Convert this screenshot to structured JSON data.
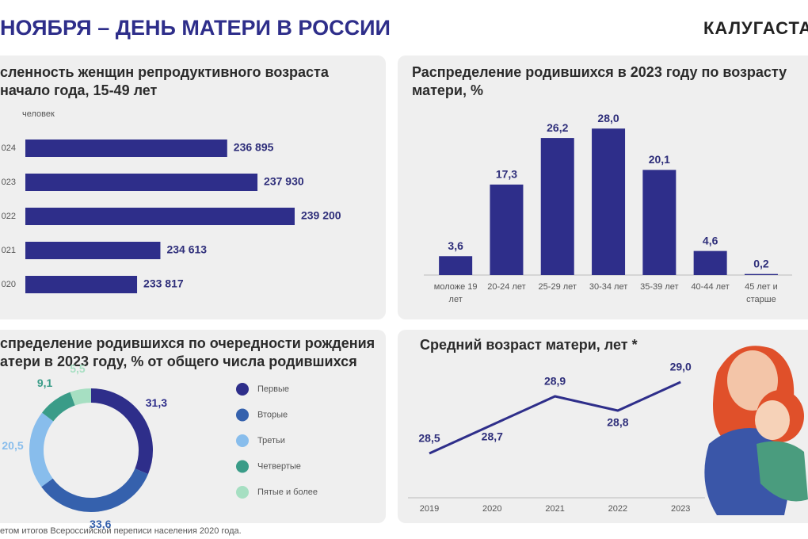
{
  "header": {
    "title": "НОЯБРЯ – ДЕНЬ МАТЕРИ В РОССИИ",
    "brand": "КАЛУГАСТА"
  },
  "footer": {
    "note": "етом итогов Всероссийской переписи населения 2020 года."
  },
  "chart_data": [
    {
      "type": "bar",
      "orientation": "horizontal",
      "title": [
        "сленность женщин репродуктивного возраста",
        "начало года, 15-49 лет"
      ],
      "unit": "человек",
      "categories": [
        "024",
        "023",
        "022",
        "021",
        "020"
      ],
      "values": [
        236895,
        237930,
        239200,
        234613,
        233817
      ],
      "value_labels": [
        "236 895",
        "237 930",
        "239 200",
        "234 613",
        "233 817"
      ],
      "xlim": [
        230000,
        240500
      ],
      "color": "#2e2e8a"
    },
    {
      "type": "bar",
      "orientation": "vertical",
      "title": [
        "Распределение родившихся в 2023 году по возрасту",
        "матери, %"
      ],
      "categories": [
        [
          "моложе  19",
          "лет"
        ],
        [
          "20-24  лет"
        ],
        [
          "25-29  лет"
        ],
        [
          "30-34  лет"
        ],
        [
          "35-39  лет"
        ],
        [
          "40-44  лет"
        ],
        [
          "45 лет и",
          "старше"
        ]
      ],
      "values": [
        3.6,
        17.3,
        26.2,
        28.0,
        20.1,
        4.6,
        0.2
      ],
      "value_labels": [
        "3,6",
        "17,3",
        "26,2",
        "28,0",
        "20,1",
        "4,6",
        "0,2"
      ],
      "ylim": [
        0,
        30
      ],
      "color": "#2e2e8a"
    },
    {
      "type": "pie",
      "donut": true,
      "title": [
        "спределение родившихся по очередности рождения",
        "атери в 2023 году, % от общего числа родившихся"
      ],
      "categories": [
        "Первые",
        "Вторые",
        "Третьи",
        "Четвертые",
        "Пятые  и более"
      ],
      "values": [
        31.3,
        33.6,
        20.5,
        9.1,
        5.5
      ],
      "value_labels": [
        "31,3",
        "33,6",
        "20,5",
        "9,1",
        "5,5"
      ],
      "colors": [
        "#2e2e8a",
        "#3561ad",
        "#88bdec",
        "#3a9c88",
        "#a6dfc2"
      ]
    },
    {
      "type": "line",
      "title": [
        "Средний возраст матери, лет *"
      ],
      "x": [
        "2019",
        "2020",
        "2021",
        "2022",
        "2023"
      ],
      "values": [
        28.5,
        28.7,
        28.9,
        28.8,
        29.0
      ],
      "value_labels": [
        "28,5",
        "28,7",
        "28,9",
        "28,8",
        "29,0"
      ],
      "ylim": [
        28.4,
        29.1
      ],
      "color": "#2e2e8a"
    }
  ]
}
